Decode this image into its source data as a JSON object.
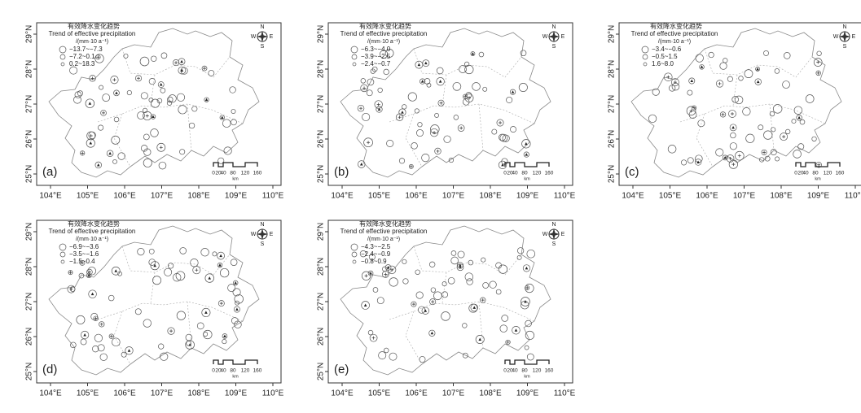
{
  "legend": {
    "title_cn": "有效降水变化趋势",
    "title_en": "Trend of effective precipitation",
    "unit": "/(mm·10 a⁻¹)"
  },
  "x_labels": [
    "104°E",
    "105°E",
    "106°E",
    "107°E",
    "108°E",
    "109°E",
    "110°E"
  ],
  "y_labels": [
    "29°N",
    "28°N",
    "27°N",
    "26°N",
    "25°N"
  ],
  "scale": {
    "labels": [
      "0",
      "20",
      "40",
      "80",
      "120",
      "160"
    ],
    "unit": "km"
  },
  "compass": {
    "n": "N",
    "s": "S",
    "w": "W",
    "e": "E"
  },
  "panels": [
    {
      "label": "(a)",
      "classes": [
        "−13.7~−7.3",
        "−7.2~0.1",
        "0.2~18.3"
      ]
    },
    {
      "label": "(b)",
      "classes": [
        "−6.3~−4.0",
        "−3.9~−2.5",
        "−2.4~−0.7"
      ]
    },
    {
      "label": "(c)",
      "classes": [
        "−3.4~−0.6",
        "−0.5~1.5",
        "1.6~8.0"
      ]
    },
    {
      "label": "(d)",
      "classes": [
        "−6.9~−3.6",
        "−3.5~−1.6",
        "−1.5~0.4"
      ]
    },
    {
      "label": "(e)",
      "classes": [
        "−4.3~−2.5",
        "−2.4~−0.9",
        "−0.8~0.9"
      ]
    }
  ]
}
